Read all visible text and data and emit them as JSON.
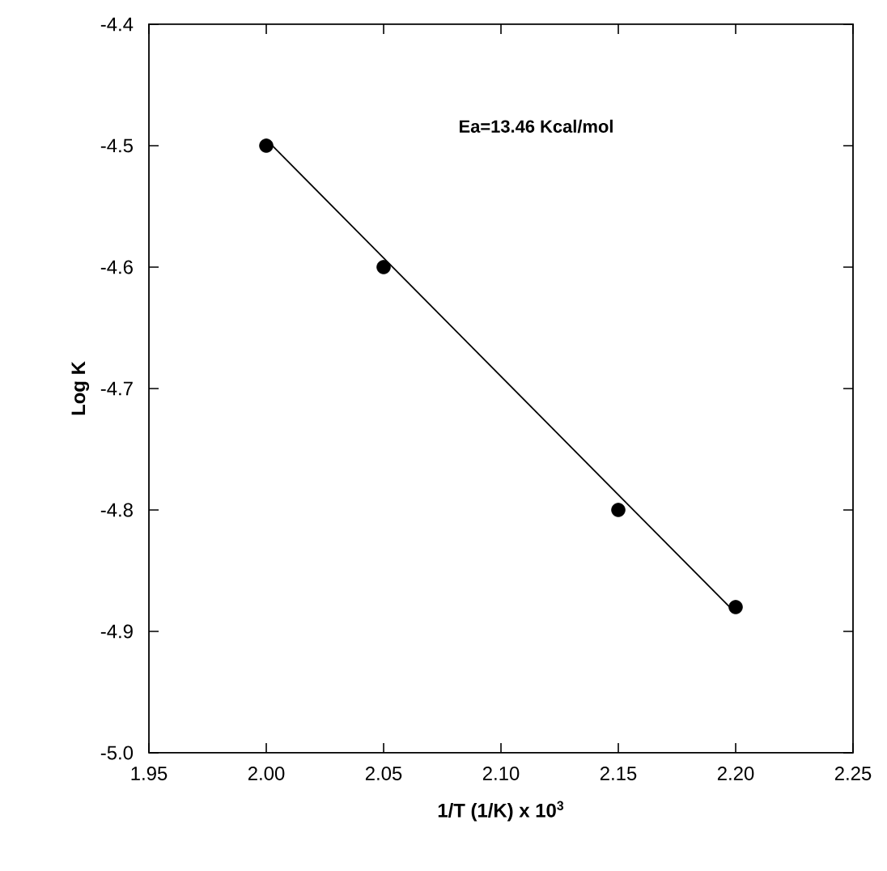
{
  "chart_data": {
    "type": "scatter",
    "xlabel": "1/T (1/K) x 10$^{3}$",
    "ylabel": "Log K",
    "annotations": [
      "Ea=13.46 Kcal/mol"
    ],
    "series": [
      {
        "color": "#000000",
        "x": [
          2.0,
          2.05,
          2.15,
          2.2
        ],
        "values": [
          -4.5,
          -4.6,
          -4.8,
          -4.88
        ]
      },
      {
        "type": "line",
        "color": "#000000",
        "marker": "none",
        "x": [
          2.0,
          2.2
        ],
        "values": [
          -4.495,
          -4.885
        ]
      }
    ],
    "xlim": [
      1.95,
      2.25
    ],
    "ylim": [
      -5.0,
      -4.4
    ],
    "xticks": [
      {
        "value": 1.95,
        "label": "1.95"
      },
      {
        "value": 2.0,
        "label": "2.00"
      },
      {
        "value": 2.05,
        "label": "2.05"
      },
      {
        "value": 2.1,
        "label": "2.10"
      },
      {
        "value": 2.15,
        "label": "2.15"
      },
      {
        "value": 2.2,
        "label": "2.20"
      },
      {
        "value": 2.25,
        "label": "2.25"
      }
    ],
    "yticks": [
      {
        "value": -5.0,
        "label": "-5.0"
      },
      {
        "value": -4.9,
        "label": "-4.9"
      },
      {
        "value": -4.8,
        "label": "-4.8"
      },
      {
        "value": -4.7,
        "label": "-4.7"
      },
      {
        "value": -4.6,
        "label": "-4.6"
      },
      {
        "value": -4.5,
        "label": "-4.5"
      },
      {
        "value": -4.4,
        "label": "-4.4"
      }
    ],
    "grid": false,
    "marker": "circle"
  }
}
